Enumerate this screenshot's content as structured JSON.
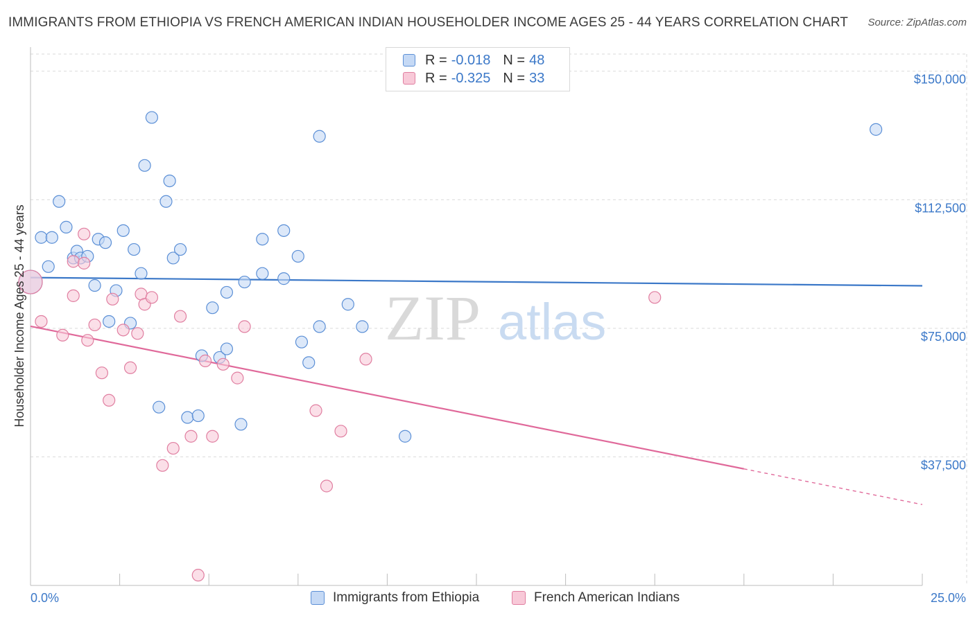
{
  "header": {
    "title": "IMMIGRANTS FROM ETHIOPIA VS FRENCH AMERICAN INDIAN HOUSEHOLDER INCOME AGES 25 - 44 YEARS CORRELATION CHART",
    "source": "Source: ZipAtlas.com"
  },
  "watermark": {
    "zip": "ZIP",
    "atlas": "atlas"
  },
  "legend": {
    "blue": {
      "r_label": "R =",
      "r_value": "-0.018",
      "n_label": "N =",
      "n_value": "48"
    },
    "pink": {
      "r_label": "R =",
      "r_value": "-0.325",
      "n_label": "N =",
      "n_value": "33"
    }
  },
  "colors": {
    "blue_fill": "#c5d9f5",
    "blue_stroke": "#5b8fd6",
    "blue_line": "#3b78c8",
    "pink_fill": "#f8c9d8",
    "pink_stroke": "#e07ea0",
    "pink_line": "#e0699a",
    "grid": "#d9d9d9",
    "axis_text": "#3b78c8"
  },
  "chart_data": {
    "type": "scatter",
    "title": "IMMIGRANTS FROM ETHIOPIA VS FRENCH AMERICAN INDIAN HOUSEHOLDER INCOME AGES 25 - 44 YEARS CORRELATION CHART",
    "xlabel": "",
    "ylabel": "Householder Income Ages 25 - 44 years",
    "xlim": [
      0,
      25
    ],
    "ylim": [
      0,
      155000
    ],
    "x_tick_labels": [
      "0.0%",
      "25.0%"
    ],
    "y_ticks": [
      37500,
      75000,
      112500,
      150000
    ],
    "y_tick_labels": [
      "$37,500",
      "$75,000",
      "$112,500",
      "$150,000"
    ],
    "legend_position": "bottom",
    "series": [
      {
        "name": "Immigrants from Ethiopia",
        "color": "blue",
        "trend": {
          "x": [
            0,
            25
          ],
          "y": [
            89800,
            87400
          ]
        },
        "points": [
          {
            "x": 0.0,
            "y": 88500,
            "big": true
          },
          {
            "x": 0.3,
            "y": 101500
          },
          {
            "x": 0.6,
            "y": 101500
          },
          {
            "x": 0.8,
            "y": 112000
          },
          {
            "x": 1.0,
            "y": 104500
          },
          {
            "x": 1.2,
            "y": 95500
          },
          {
            "x": 1.3,
            "y": 97500
          },
          {
            "x": 1.4,
            "y": 95500
          },
          {
            "x": 1.6,
            "y": 96000
          },
          {
            "x": 1.8,
            "y": 87500
          },
          {
            "x": 1.9,
            "y": 101000
          },
          {
            "x": 2.1,
            "y": 100000
          },
          {
            "x": 2.2,
            "y": 77000
          },
          {
            "x": 2.4,
            "y": 86000
          },
          {
            "x": 2.6,
            "y": 103500
          },
          {
            "x": 2.8,
            "y": 76500
          },
          {
            "x": 2.9,
            "y": 98000
          },
          {
            "x": 3.1,
            "y": 91000
          },
          {
            "x": 3.2,
            "y": 122500
          },
          {
            "x": 3.4,
            "y": 136500
          },
          {
            "x": 3.6,
            "y": 52000
          },
          {
            "x": 3.8,
            "y": 112000
          },
          {
            "x": 3.9,
            "y": 118000
          },
          {
            "x": 4.0,
            "y": 95500
          },
          {
            "x": 4.2,
            "y": 98000
          },
          {
            "x": 4.4,
            "y": 49000
          },
          {
            "x": 4.7,
            "y": 49500
          },
          {
            "x": 4.8,
            "y": 67000
          },
          {
            "x": 5.1,
            "y": 81000
          },
          {
            "x": 5.3,
            "y": 66500
          },
          {
            "x": 5.5,
            "y": 85500
          },
          {
            "x": 5.5,
            "y": 69000
          },
          {
            "x": 5.9,
            "y": 47000
          },
          {
            "x": 6.0,
            "y": 88500
          },
          {
            "x": 6.5,
            "y": 101000
          },
          {
            "x": 6.5,
            "y": 91000
          },
          {
            "x": 7.1,
            "y": 103500
          },
          {
            "x": 7.1,
            "y": 89500
          },
          {
            "x": 7.5,
            "y": 96000
          },
          {
            "x": 7.6,
            "y": 71000
          },
          {
            "x": 7.8,
            "y": 65000
          },
          {
            "x": 8.1,
            "y": 75500
          },
          {
            "x": 8.1,
            "y": 131000
          },
          {
            "x": 8.9,
            "y": 82000
          },
          {
            "x": 9.3,
            "y": 75500
          },
          {
            "x": 10.5,
            "y": 43500
          },
          {
            "x": 23.7,
            "y": 133000
          },
          {
            "x": 0.5,
            "y": 93000
          }
        ]
      },
      {
        "name": "French American Indians",
        "color": "pink",
        "trend": {
          "x": [
            0,
            25
          ],
          "y": [
            75600,
            23600
          ],
          "solid_until_x": 20.0
        },
        "points": [
          {
            "x": 0.0,
            "y": 88500,
            "big": true
          },
          {
            "x": 0.3,
            "y": 77000
          },
          {
            "x": 0.9,
            "y": 73000
          },
          {
            "x": 1.2,
            "y": 94500
          },
          {
            "x": 1.2,
            "y": 84500
          },
          {
            "x": 1.5,
            "y": 102500
          },
          {
            "x": 1.5,
            "y": 94000
          },
          {
            "x": 1.6,
            "y": 71500
          },
          {
            "x": 1.8,
            "y": 76000
          },
          {
            "x": 2.0,
            "y": 62000
          },
          {
            "x": 2.2,
            "y": 54000
          },
          {
            "x": 2.3,
            "y": 83500
          },
          {
            "x": 2.6,
            "y": 74500
          },
          {
            "x": 2.8,
            "y": 63500
          },
          {
            "x": 3.0,
            "y": 73500
          },
          {
            "x": 3.1,
            "y": 85000
          },
          {
            "x": 3.2,
            "y": 82000
          },
          {
            "x": 3.4,
            "y": 84000
          },
          {
            "x": 3.7,
            "y": 35000
          },
          {
            "x": 4.0,
            "y": 40000
          },
          {
            "x": 4.2,
            "y": 78500
          },
          {
            "x": 4.5,
            "y": 43500
          },
          {
            "x": 4.7,
            "y": 3000
          },
          {
            "x": 4.9,
            "y": 65500
          },
          {
            "x": 5.1,
            "y": 43500
          },
          {
            "x": 5.4,
            "y": 64500
          },
          {
            "x": 5.8,
            "y": 60500
          },
          {
            "x": 6.0,
            "y": 75500
          },
          {
            "x": 8.0,
            "y": 51000
          },
          {
            "x": 8.3,
            "y": 29000
          },
          {
            "x": 8.7,
            "y": 45000
          },
          {
            "x": 9.4,
            "y": 66000
          },
          {
            "x": 17.5,
            "y": 84000
          }
        ]
      }
    ]
  }
}
